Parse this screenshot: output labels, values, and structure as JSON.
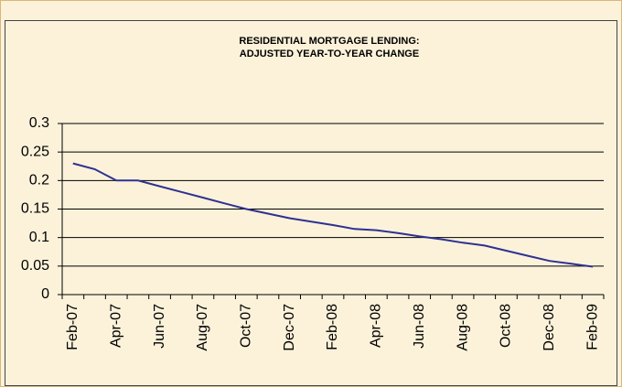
{
  "chart_data": {
    "type": "line",
    "title": [
      "RESIDENTIAL MORTGAGE LENDING:",
      "ADJUSTED YEAR-TO-YEAR CHANGE"
    ],
    "categories": [
      "Feb-07",
      null,
      "Apr-07",
      null,
      "Jun-07",
      null,
      "Aug-07",
      null,
      "Oct-07",
      null,
      "Dec-07",
      null,
      "Feb-08",
      null,
      "Apr-08",
      null,
      "Jun-08",
      null,
      "Aug-08",
      null,
      "Oct-08",
      null,
      "Dec-08",
      null,
      "Feb-09"
    ],
    "series": [
      {
        "name": "Adjusted year-to-year change",
        "color": "#2e3192",
        "values": [
          0.23,
          0.22,
          0.2,
          0.2,
          0.19,
          0.18,
          0.17,
          0.16,
          0.15,
          0.142,
          0.134,
          0.128,
          0.122,
          0.115,
          0.113,
          0.108,
          0.102,
          0.097,
          0.091,
          0.086,
          0.077,
          0.068,
          0.059,
          0.054,
          0.049
        ]
      }
    ],
    "ylim": [
      0,
      0.3
    ],
    "yticks": [
      0,
      0.05,
      0.1,
      0.15,
      0.2,
      0.25,
      0.3
    ],
    "grid": true,
    "legend": false
  }
}
